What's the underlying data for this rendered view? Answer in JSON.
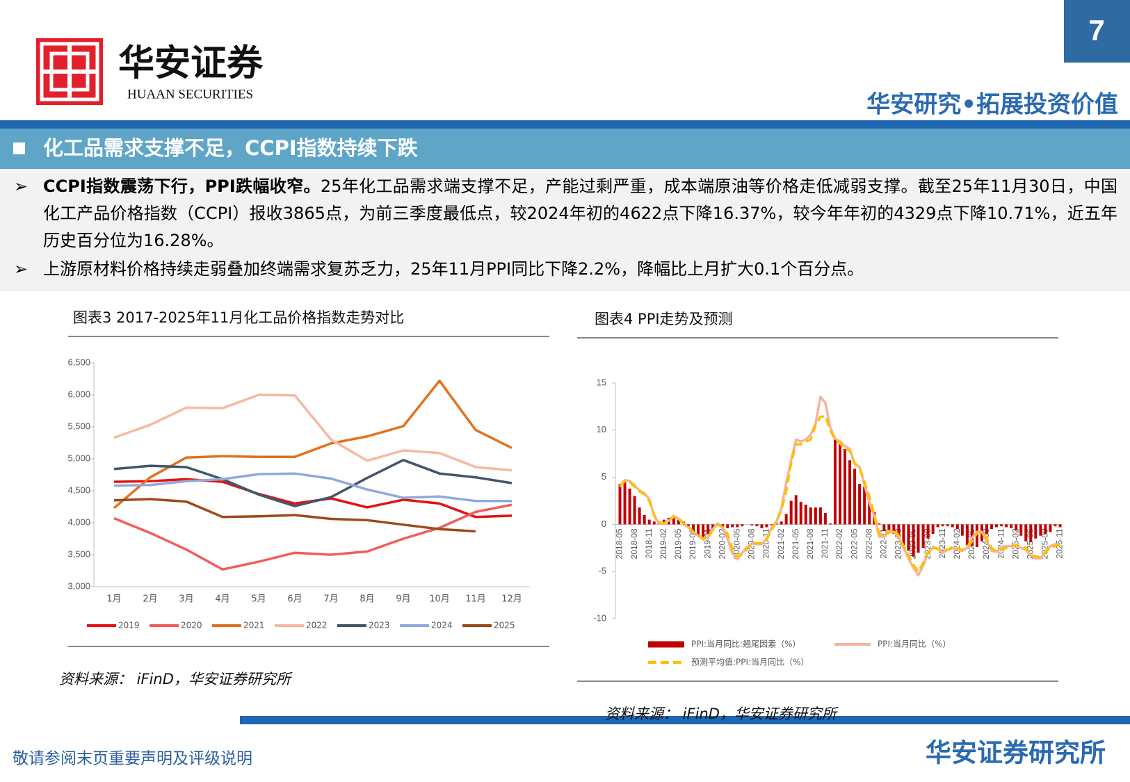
{
  "header": {
    "page_number": "7",
    "logo_cn": "华安证券",
    "logo_en": "HUAAN SECURITIES",
    "slogan": "华安研究•拓展投资价值"
  },
  "section_title": "化工品需求支撑不足，CCPI指数持续下跌",
  "bullets": [
    {
      "bold": "CCPI指数震荡下行，PPI跌幅收窄。",
      "text": "25年化工品需求端支撑不足，产能过剩严重，成本端原油等价格走低减弱支撑。截至25年11月30日，中国化工产品价格指数（CCPI）报收3865点，为前三季度最低点，较2024年初的4622点下降16.37%，较今年年初的4329点下降10.71%，近五年历史百分位为16.28%。"
    },
    {
      "text": "上游原材料价格持续走弱叠加终端需求复苏乏力，25年11月PPI同比下降2.2%，降幅比上月扩大0.1个百分点。"
    }
  ],
  "chart_data": [
    {
      "type": "line",
      "title": "图表3 2017-2025年11月化工品价格指数走势对比",
      "source": "资料来源： iFinD，华安证券研究所",
      "categories": [
        "1月",
        "2月",
        "3月",
        "4月",
        "5月",
        "6月",
        "7月",
        "8月",
        "9月",
        "10月",
        "11月",
        "12月"
      ],
      "ylim": [
        3000,
        6500
      ],
      "yticks": [
        {
          "value": 3000,
          "label": "3,000"
        },
        {
          "value": 3500,
          "label": "3,500"
        },
        {
          "value": 4000,
          "label": "4,000"
        },
        {
          "value": 4500,
          "label": "4,500"
        },
        {
          "value": 5000,
          "label": "5,000"
        },
        {
          "value": 5500,
          "label": "5,500"
        },
        {
          "value": 6000,
          "label": "6,000"
        },
        {
          "value": 6500,
          "label": "6,500"
        }
      ],
      "legend": "bottom",
      "series": [
        {
          "name": "2019",
          "color": "#e81010",
          "values": [
            4640,
            4650,
            4680,
            4640,
            4450,
            4300,
            4380,
            4240,
            4360,
            4300,
            4090,
            4110
          ]
        },
        {
          "name": "2020",
          "color": "#f25c5c",
          "values": [
            4070,
            3840,
            3580,
            3270,
            3390,
            3530,
            3500,
            3550,
            3750,
            3920,
            4170,
            4280
          ]
        },
        {
          "name": "2021",
          "color": "#e2711d",
          "values": [
            4230,
            4710,
            5020,
            5040,
            5030,
            5030,
            5240,
            5350,
            5510,
            6220,
            5450,
            5170
          ]
        },
        {
          "name": "2022",
          "color": "#f5b9a2",
          "values": [
            5330,
            5530,
            5800,
            5790,
            6000,
            5990,
            5300,
            4970,
            5130,
            5090,
            4870,
            4820
          ]
        },
        {
          "name": "2023",
          "color": "#44546a",
          "values": [
            4840,
            4890,
            4870,
            4680,
            4440,
            4260,
            4400,
            4700,
            4980,
            4770,
            4710,
            4620
          ]
        },
        {
          "name": "2024",
          "color": "#8eaadb",
          "values": [
            4580,
            4590,
            4650,
            4680,
            4760,
            4770,
            4690,
            4520,
            4390,
            4410,
            4340,
            4340
          ]
        },
        {
          "name": "2025",
          "color": "#9c4a1a",
          "values": [
            4350,
            4370,
            4330,
            4090,
            4100,
            4120,
            4060,
            4040,
            3970,
            3900,
            3865,
            null
          ]
        }
      ]
    },
    {
      "type": "combo",
      "title": "图表4 PPI走势及预测",
      "source": "资料来源： iFinD，华安证券研究所",
      "categories": [
        "2018-05",
        null,
        null,
        "2018-08",
        null,
        null,
        "2018-11",
        null,
        null,
        "2019-02",
        null,
        null,
        "2019-05",
        null,
        null,
        "2019-08",
        null,
        null,
        "2019-11",
        null,
        null,
        "2020-02",
        null,
        null,
        "2020-05",
        null,
        null,
        "2020-08",
        null,
        null,
        "2020-11",
        null,
        null,
        "2021-02",
        null,
        null,
        "2021-05",
        null,
        null,
        "2021-08",
        null,
        null,
        "2021-11",
        null,
        null,
        "2022-02",
        null,
        null,
        "2022-05",
        null,
        null,
        "2022-08",
        null,
        null,
        "2022-11",
        null,
        null,
        "2023-02",
        null,
        null,
        "2023-05",
        null,
        null,
        "2023-08",
        null,
        null,
        "2023-11",
        null,
        null,
        "2024-02",
        null,
        null,
        "2024-05",
        null,
        null,
        "2024-08",
        null,
        null,
        "2024-11",
        null,
        null,
        "2025-02",
        null,
        null,
        "2025-05",
        null,
        null,
        "2025-08",
        null,
        null,
        "2025-11"
      ],
      "ylim": [
        -10,
        15
      ],
      "yticks": [
        -10,
        -5,
        0,
        5,
        10,
        15
      ],
      "legend": "bottom",
      "series": [
        {
          "name": "PPI:当月同比:翘尾因素（%）",
          "kind": "bar",
          "color": "#c00000",
          "values": [
            4.3,
            4.5,
            3.8,
            3.0,
            1.8,
            1.0,
            0.5,
            0.3,
            0.3,
            0.5,
            0.7,
            0.8,
            0.5,
            0.3,
            -0.2,
            -0.8,
            -1.2,
            -1.5,
            -1.0,
            -0.6,
            -0.2,
            -0.3,
            -0.4,
            -0.3,
            -0.3,
            -0.2,
            0.0,
            -0.1,
            -0.2,
            -0.4,
            -0.3,
            -0.1,
            0.1,
            0.3,
            1.1,
            2.5,
            3.1,
            2.4,
            2.1,
            1.8,
            1.8,
            1.8,
            1.2,
            0.1,
            9.0,
            8.8,
            8.0,
            6.8,
            5.9,
            4.3,
            4.0,
            2.4,
            1.3,
            0.1,
            -0.7,
            -0.8,
            -1.0,
            -1.5,
            -2.2,
            -2.8,
            -3.4,
            -3.0,
            -2.5,
            -1.5,
            -1.0,
            -0.3,
            -0.2,
            -0.2,
            -0.3,
            -0.5,
            -1.2,
            -2.2,
            -2.3,
            -2.4,
            -1.8,
            -1.0,
            -0.5,
            -0.3,
            -0.2,
            -0.3,
            -0.4,
            -0.6,
            -1.2,
            -1.8,
            -1.9,
            -1.5,
            -1.2,
            -1.0,
            -0.8,
            -0.2,
            -0.3
          ]
        },
        {
          "name": "PPI:当月同比（%）",
          "kind": "line",
          "color": "#f4b3a0",
          "values": [
            4.1,
            4.7,
            4.6,
            4.1,
            3.6,
            3.3,
            2.7,
            0.9,
            0.1,
            0.1,
            0.4,
            0.9,
            0.6,
            0.0,
            -0.3,
            -0.8,
            -1.2,
            -1.6,
            -1.4,
            -0.5,
            0.1,
            -0.4,
            -1.5,
            -3.1,
            -3.7,
            -3.0,
            -2.4,
            -2.0,
            -2.1,
            -2.1,
            -1.5,
            -0.4,
            0.3,
            1.7,
            4.4,
            6.8,
            9.0,
            8.8,
            9.0,
            9.5,
            10.7,
            13.5,
            12.9,
            10.3,
            9.1,
            8.8,
            8.3,
            8.0,
            6.4,
            6.1,
            4.2,
            2.3,
            0.9,
            -1.3,
            -1.3,
            -0.7,
            -0.8,
            -1.4,
            -2.5,
            -3.6,
            -4.6,
            -5.4,
            -4.4,
            -3.0,
            -2.5,
            -2.6,
            -3.0,
            -2.7,
            -2.5,
            -2.7,
            -2.8,
            -2.5,
            -1.4,
            -0.8,
            -0.8,
            -1.8,
            -2.8,
            -2.9,
            -2.5,
            -2.3,
            -2.3,
            -2.2,
            -2.5,
            -2.7,
            -3.3,
            -3.6,
            -3.6,
            -2.9,
            -2.3,
            -2.1,
            -2.2
          ]
        },
        {
          "name": "预测平均值:PPI:当月同比（%）",
          "kind": "line",
          "dashed": true,
          "color": "#ffc000",
          "values": [
            4.0,
            4.6,
            4.5,
            4.0,
            3.5,
            3.2,
            2.5,
            1.0,
            0.2,
            0.1,
            0.4,
            0.8,
            0.7,
            0.1,
            -0.2,
            -0.8,
            -1.1,
            -1.5,
            -1.4,
            -0.6,
            0.0,
            -0.3,
            -1.0,
            -2.6,
            -3.4,
            -3.2,
            -2.6,
            -2.0,
            -2.0,
            -2.0,
            -1.6,
            -0.6,
            0.3,
            1.5,
            3.5,
            6.5,
            8.5,
            8.5,
            8.8,
            9.0,
            10.5,
            11.4,
            11.5,
            10.0,
            9.0,
            8.6,
            8.0,
            7.8,
            6.5,
            6.0,
            4.5,
            3.0,
            1.0,
            -1.0,
            -1.2,
            -0.9,
            -0.5,
            -1.2,
            -2.3,
            -3.3,
            -4.3,
            -5.0,
            -4.1,
            -3.0,
            -2.4,
            -2.6,
            -2.7,
            -2.7,
            -2.4,
            -2.5,
            -2.7,
            -2.4,
            -1.8,
            -0.9,
            -0.8,
            -1.5,
            -2.5,
            -2.9,
            -2.7,
            -2.5,
            -2.3,
            -2.2,
            -2.3,
            -2.5,
            -3.2,
            -3.4,
            -3.5,
            -3.0,
            -2.4,
            -2.3,
            -2.1
          ]
        }
      ]
    }
  ],
  "footer": {
    "disclaimer": "敬请参阅末页重要声明及评级说明",
    "brand": "华安证券研究所"
  }
}
